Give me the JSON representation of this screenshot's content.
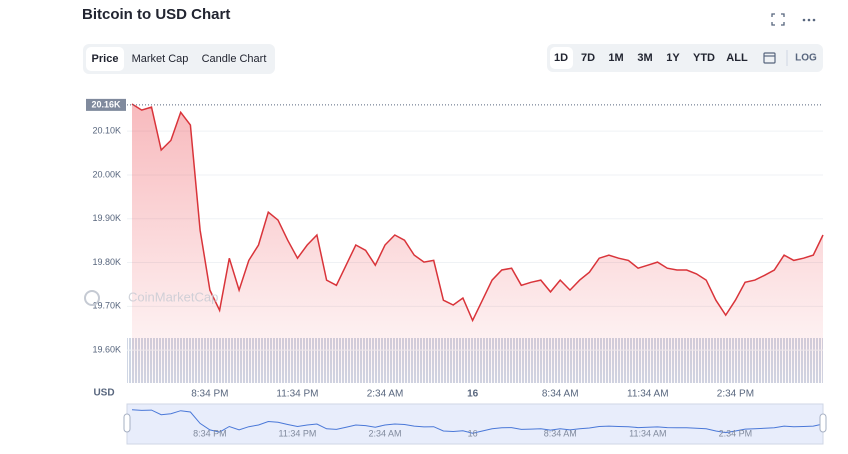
{
  "header": {
    "title": "Bitcoin to USD Chart"
  },
  "tabs": [
    "Price",
    "Market Cap",
    "Candle Chart"
  ],
  "ranges": [
    "1D",
    "7D",
    "1M",
    "3M",
    "1Y",
    "YTD",
    "ALL"
  ],
  "log_button": "LOG",
  "watermark": "CoinMarketCap",
  "chart_data": {
    "type": "line",
    "y_label": "USD",
    "color": "#d9343a",
    "categories": [
      null,
      null,
      null,
      null,
      null,
      null,
      null,
      null,
      "8:34 PM",
      null,
      null,
      null,
      null,
      null,
      null,
      null,
      null,
      "11:34 PM",
      null,
      null,
      null,
      null,
      null,
      null,
      null,
      null,
      "2:34 AM",
      null,
      null,
      null,
      null,
      null,
      null,
      null,
      null,
      "16",
      null,
      null,
      null,
      null,
      null,
      null,
      null,
      null,
      "8:34 AM",
      null,
      null,
      null,
      null,
      null,
      null,
      null,
      null,
      "11:34 AM",
      null,
      null,
      null,
      null,
      null,
      null,
      null,
      null,
      "2:34 PM",
      null,
      null,
      null,
      null,
      null,
      null,
      null,
      null,
      null
    ],
    "values": [
      20162,
      20148,
      20155,
      20057,
      20079,
      20143,
      20114,
      19874,
      19737,
      19691,
      19810,
      19737,
      19805,
      19840,
      19915,
      19897,
      19851,
      19810,
      19840,
      19863,
      19760,
      19748,
      19794,
      19840,
      19828,
      19794,
      19840,
      19863,
      19851,
      19817,
      19801,
      19805,
      19714,
      19703,
      19719,
      19668,
      19714,
      19760,
      19783,
      19787,
      19748,
      19755,
      19760,
      19733,
      19760,
      19737,
      19760,
      19778,
      19810,
      19817,
      19810,
      19805,
      19787,
      19794,
      19801,
      19787,
      19783,
      19783,
      19774,
      19760,
      19714,
      19680,
      19714,
      19755,
      19760,
      19771,
      19783,
      19817,
      19805,
      19810,
      19817,
      19863
    ],
    "ylim": [
      19525,
      20178
    ],
    "yticks": [
      {
        "value": 19600,
        "label": "19.60K"
      },
      {
        "value": 19700,
        "label": "19.70K"
      },
      {
        "value": 19800,
        "label": "19.80K"
      },
      {
        "value": 19900,
        "label": "19.90K"
      },
      {
        "value": 20000,
        "label": "20.00K"
      },
      {
        "value": 20100,
        "label": "20.10K"
      }
    ],
    "annotations": [
      {
        "value": 20160,
        "label": "20.16K"
      }
    ],
    "grid": true
  }
}
